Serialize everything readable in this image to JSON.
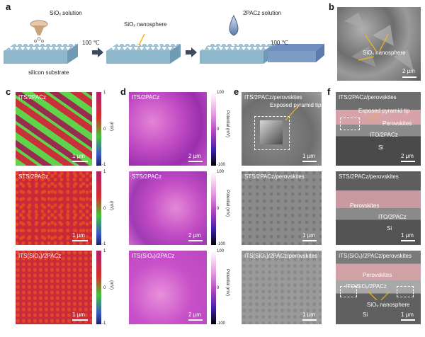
{
  "panels": {
    "a": {
      "label": "a",
      "step1": "SiOₓ solution",
      "step2": "SiOₓ nanosphere",
      "step3": "2PACz solution",
      "temp1": "100 ℃",
      "temp2": "100 ℃",
      "substrate": "silicon substrate"
    },
    "b": {
      "label": "b",
      "annotation": "SiOₓ nanosphere",
      "scale": "2 μm"
    },
    "c": {
      "label": "c",
      "tiles": [
        {
          "title": "ITS/2PACz",
          "scale": "1 μm"
        },
        {
          "title": "STS/2PACz",
          "scale": "1 μm"
        },
        {
          "title": "ITS(SiOₓ)/2PACz",
          "scale": "1 μm"
        }
      ],
      "colorbar": {
        "max": "1",
        "mid": "0",
        "min": "-1",
        "unit": "(mV)"
      }
    },
    "d": {
      "label": "d",
      "tiles": [
        {
          "title": "ITS/2PACz",
          "scale": "2 μm"
        },
        {
          "title": "STS/2PACz",
          "scale": "2 μm"
        },
        {
          "title": "ITS(SiOₓ)/2PACz",
          "scale": "2 μm"
        }
      ],
      "colorbar": {
        "max": "100",
        "mid": "0",
        "min": "-100",
        "unit": "Potential (mV)"
      }
    },
    "e": {
      "label": "e",
      "tiles": [
        {
          "title": "ITS/2PACz/perovskites",
          "scale": "1 μm",
          "note": "Exposed pyramid tip"
        },
        {
          "title": "STS/2PACz/perovskites",
          "scale": "1 μm"
        },
        {
          "title": "ITS(SiOₓ)/2PACz/perovskites",
          "scale": "1 μm"
        }
      ]
    },
    "f": {
      "label": "f",
      "tiles": [
        {
          "title": "ITS/2PACz/perovskites",
          "scale": "2 μm",
          "note": "Exposed pyramid tip",
          "l1": "Perovskites",
          "l2": "ITO/2PACz",
          "l3": "Si"
        },
        {
          "title": "STS/2PACz/perovskites",
          "scale": "1 μm",
          "l1": "Perovskites",
          "l2": "ITO/2PACz",
          "l3": "Si"
        },
        {
          "title": "ITS(SiOₓ)/2PACz/perovskites",
          "scale": "1 μm",
          "l1": "Perovskites",
          "l2": "ITO/SiOₓ/2PACz",
          "l3": "Si",
          "note": "SiOₓ nanosphere"
        }
      ]
    }
  },
  "colors": {
    "green": "#5fd34a",
    "red": "#d8332a",
    "magenta": "#c84cc8",
    "sem": "#8a8a8a",
    "sem_dark": "#4a4a4a",
    "perovskite": "#d9a3a6",
    "arrow": "#f2b51e"
  }
}
